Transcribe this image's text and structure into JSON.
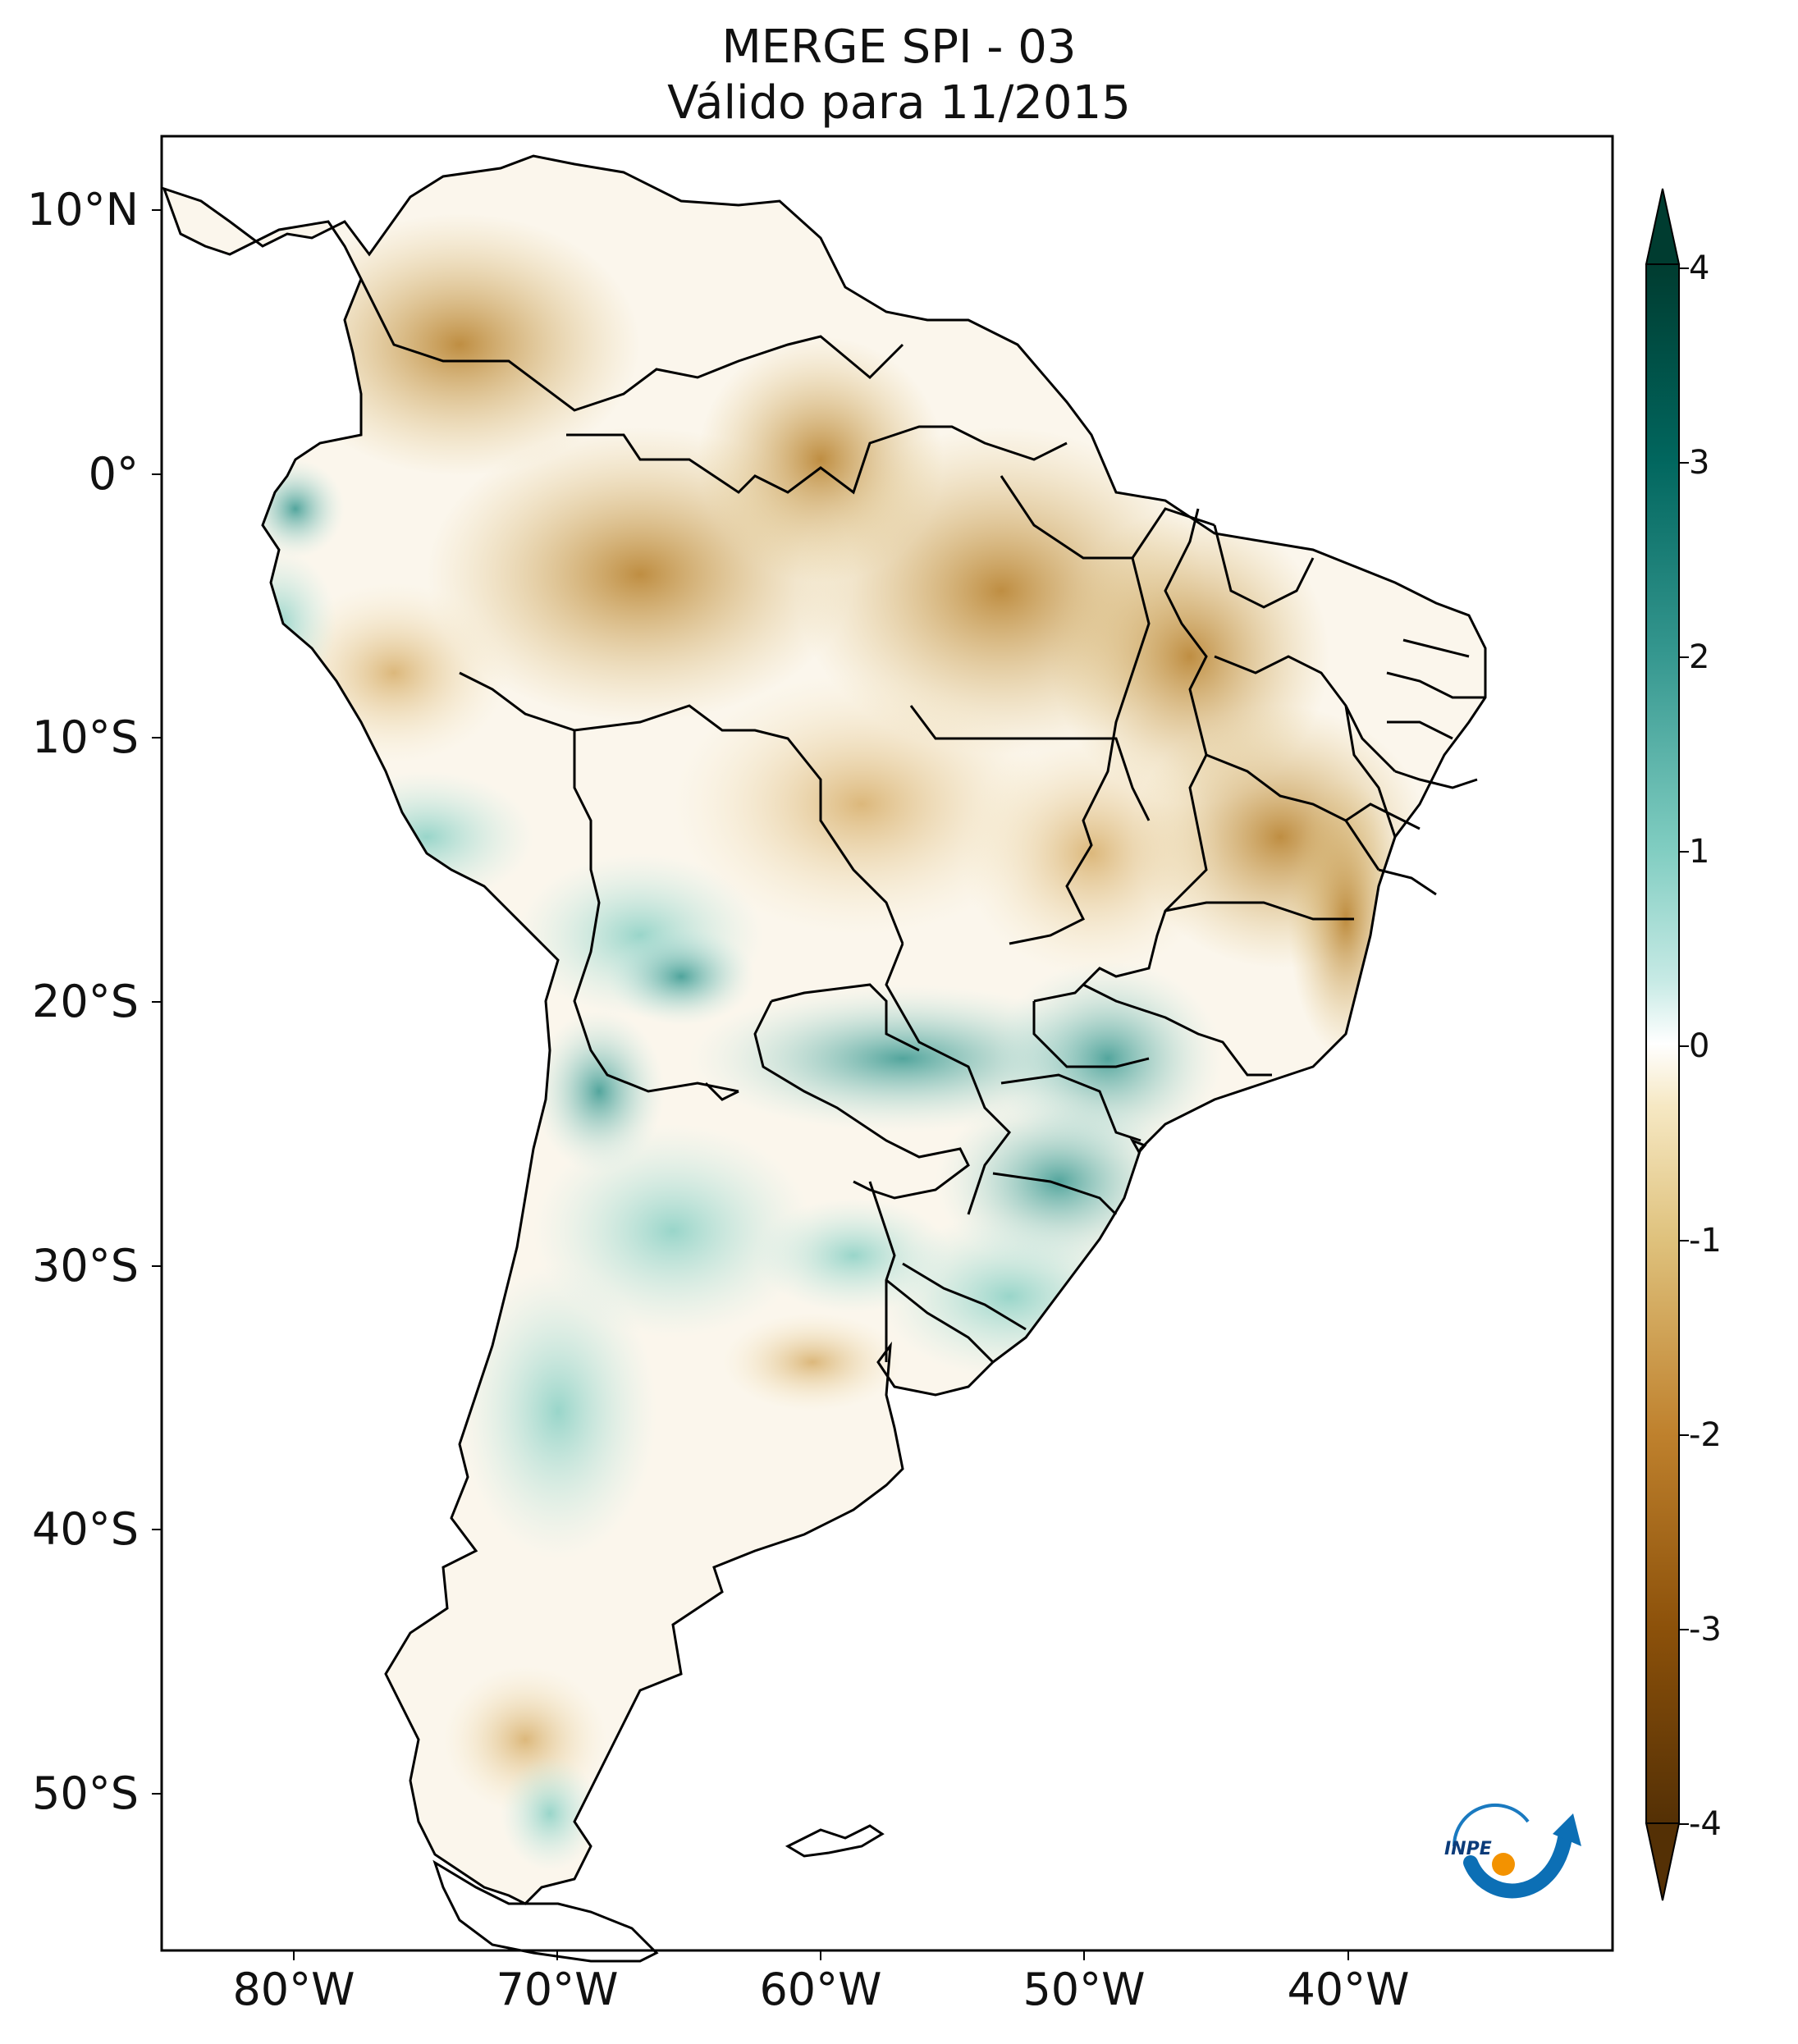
{
  "title": {
    "line1": "MERGE   SPI - 03",
    "line2": "Válido para 11/2015"
  },
  "map": {
    "region": "South America",
    "variable": "SPI - 03",
    "extent_lon": [
      -85,
      -30
    ],
    "extent_lat": [
      -56,
      13
    ],
    "lat_ticks": [
      "10°N",
      "0°",
      "10°S",
      "20°S",
      "30°S",
      "40°S",
      "50°S"
    ],
    "lon_ticks": [
      "80°W",
      "70°W",
      "60°W",
      "50°W",
      "40°W"
    ],
    "pattern": "dry (brown) over northern/central Brazil, Venezuela, Colombia; wet (teal) over southern Brazil, Paraguay, northern Argentina, Chile, Ecuador coast"
  },
  "colorbar": {
    "ticks": [
      "4",
      "3",
      "2",
      "1",
      "0",
      "-1",
      "-2",
      "-3",
      "-4"
    ],
    "colormap": "BrBG",
    "colors": [
      "#543005",
      "#8c510a",
      "#bf812d",
      "#dfc27d",
      "#f6e8c3",
      "#ffffff",
      "#c7eae5",
      "#80cdc1",
      "#35978f",
      "#01665e",
      "#003c30"
    ],
    "extend": "both"
  },
  "logo": {
    "text": "INPE"
  }
}
